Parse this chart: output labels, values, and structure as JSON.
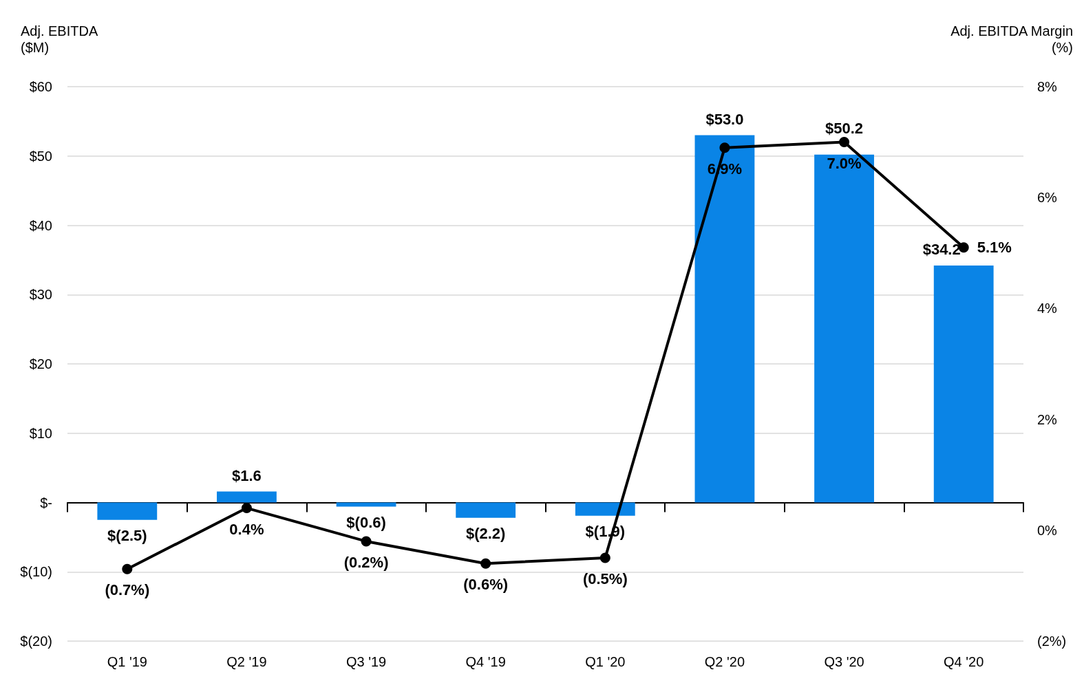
{
  "chart_data": {
    "type": "bar",
    "ylabel": "Adj. EBITDA\n($M)",
    "y2label": "Adj. EBITDA Margin\n(%)",
    "categories": [
      "Q1 '19",
      "Q2 '19",
      "Q3 '19",
      "Q4 '19",
      "Q1 '20",
      "Q2 '20",
      "Q3 '20",
      "Q4 '20"
    ],
    "series": [
      {
        "color": "#0a84e6",
        "values": [
          -2.5,
          1.6,
          -0.6,
          -2.2,
          -1.9,
          53.0,
          50.2,
          34.2
        ],
        "value_labels": [
          "$(2.5)",
          "$1.6",
          "$(0.6)",
          "$(2.2)",
          "$(1.9)",
          "$53.0",
          "$50.2",
          "$34.2"
        ]
      },
      {
        "type": "line",
        "axis": "y2",
        "color": "#000000",
        "values": [
          -0.7,
          0.4,
          -0.2,
          -0.6,
          -0.5,
          6.9,
          7.0,
          5.1
        ],
        "value_labels": [
          "(0.7%)",
          "0.4%",
          "(0.2%)",
          "(0.6%)",
          "(0.5%)",
          "6.9%",
          "7.0%",
          "5.1%"
        ]
      }
    ],
    "ylim": [
      -20,
      60
    ],
    "yticks": [
      {
        "value": -20,
        "label": "$(20)"
      },
      {
        "value": -10,
        "label": "$(10)"
      },
      {
        "value": 0,
        "label": "$-"
      },
      {
        "value": 10,
        "label": "$10"
      },
      {
        "value": 20,
        "label": "$20"
      },
      {
        "value": 30,
        "label": "$30"
      },
      {
        "value": 40,
        "label": "$40"
      },
      {
        "value": 50,
        "label": "$50"
      },
      {
        "value": 60,
        "label": "$60"
      }
    ],
    "y2lim": [
      -2,
      8
    ],
    "y2ticks": [
      {
        "value": -2,
        "label": "(2%)"
      },
      {
        "value": 0,
        "label": "0%"
      },
      {
        "value": 2,
        "label": "2%"
      },
      {
        "value": 4,
        "label": "4%"
      },
      {
        "value": 6,
        "label": "6%"
      },
      {
        "value": 8,
        "label": "8%"
      }
    ],
    "grid": "y",
    "marker": "circle",
    "line_style": "solid"
  }
}
